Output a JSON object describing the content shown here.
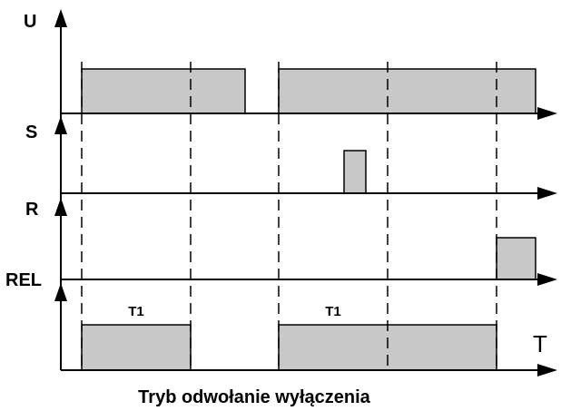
{
  "signals": [
    {
      "label": "U"
    },
    {
      "label": "S"
    },
    {
      "label": "R"
    },
    {
      "label": "REL"
    }
  ],
  "interval_labels": [
    "T1",
    "T1"
  ],
  "time_label": "T",
  "caption": "Tryb odwołanie wyłączenia"
}
